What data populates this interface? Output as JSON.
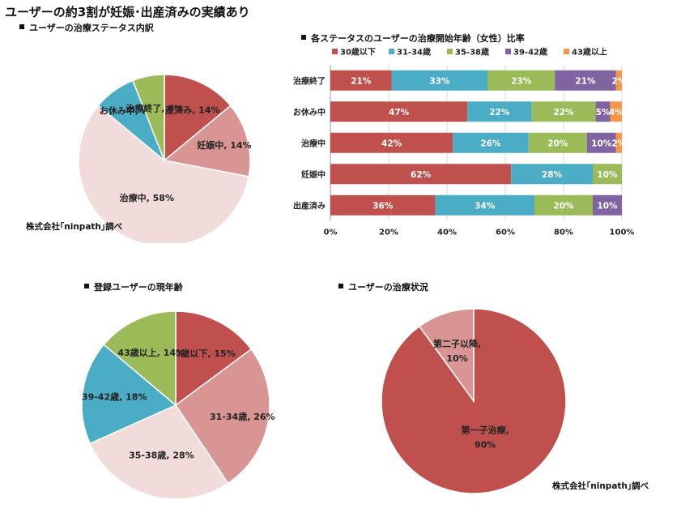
{
  "title": "ユーザーの約3割が妊娠･出産済みの実績あり",
  "credit": "株式会社｢ninpath｣調べ",
  "chart_data": [
    {
      "type": "pie",
      "title": "ユーザーの治療ステータス内訳",
      "labels": [
        "出産済み",
        "妊娠中",
        "治療中",
        "お休み中",
        "治療終了"
      ],
      "values": [
        14,
        14,
        58,
        8,
        6
      ],
      "colors": [
        "#c0504d",
        "#d99594",
        "#f2dcdb",
        "#4bacc6",
        "#9bbb59"
      ]
    },
    {
      "type": "bar",
      "orientation": "horizontal",
      "stacked": true,
      "title": "各ステータスのユーザーの治療開始年齢（女性）比率",
      "categories": [
        "治療終了",
        "お休み中",
        "治療中",
        "妊娠中",
        "出産済み"
      ],
      "series": [
        {
          "name": "30歳以下",
          "color": "#c0504d",
          "values": [
            21,
            47,
            42,
            62,
            36
          ]
        },
        {
          "name": "31-34歳",
          "color": "#4bacc6",
          "values": [
            33,
            22,
            26,
            28,
            34
          ]
        },
        {
          "name": "35-38歳",
          "color": "#9bbb59",
          "values": [
            23,
            22,
            20,
            10,
            20
          ]
        },
        {
          "name": "39-42歳",
          "color": "#8064a2",
          "values": [
            21,
            5,
            10,
            0,
            10
          ]
        },
        {
          "name": "43歳以上",
          "color": "#f79646",
          "values": [
            2,
            4,
            2,
            0,
            0
          ]
        }
      ],
      "xticks": [
        "0%",
        "20%",
        "40%",
        "60%",
        "80%",
        "100%"
      ],
      "xlim": [
        0,
        100
      ],
      "legend": "top"
    },
    {
      "type": "pie",
      "title": "登録ユーザーの現年齢",
      "labels": [
        "30歳以下",
        "31-34歳",
        "35-38歳",
        "39-42歳",
        "43歳以上"
      ],
      "values": [
        15,
        26,
        28,
        18,
        14
      ],
      "colors": [
        "#c0504d",
        "#d99594",
        "#f2dcdb",
        "#4bacc6",
        "#9bbb59"
      ]
    },
    {
      "type": "pie",
      "title": "ユーザーの治療状況",
      "labels": [
        "第一子治療",
        "第二子以降"
      ],
      "values": [
        90,
        10
      ],
      "colors": [
        "#c0504d",
        "#d99594"
      ]
    }
  ]
}
